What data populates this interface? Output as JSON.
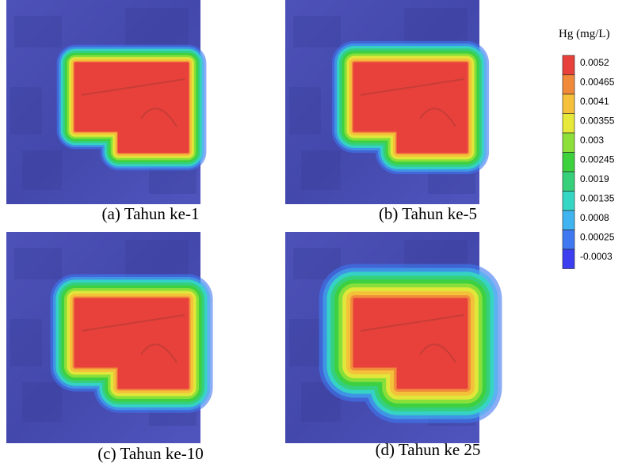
{
  "panels": [
    {
      "caption": "(a)  Tahun ke-1"
    },
    {
      "caption": "(b)  Tahun ke-5"
    },
    {
      "caption": "(c)  Tahun ke-10"
    },
    {
      "caption": "(d)  Tahun ke 25"
    }
  ],
  "legend": {
    "title": "Hg (mg/L)",
    "entries": [
      {
        "label": "0.0052",
        "color": "#e8413c"
      },
      {
        "label": "0.00465",
        "color": "#f08a3a"
      },
      {
        "label": "0.0041",
        "color": "#f5c03a"
      },
      {
        "label": "0.00355",
        "color": "#e6e83a"
      },
      {
        "label": "0.003",
        "color": "#8de03a"
      },
      {
        "label": "0.00245",
        "color": "#3ed13e"
      },
      {
        "label": "0.0019",
        "color": "#36d07a"
      },
      {
        "label": "0.00135",
        "color": "#35d6c4"
      },
      {
        "label": "0.0008",
        "color": "#3fb4f0"
      },
      {
        "label": "0.00025",
        "color": "#3f78f0"
      },
      {
        "label": "-0.0003",
        "color": "#3c3ef0"
      }
    ]
  }
}
